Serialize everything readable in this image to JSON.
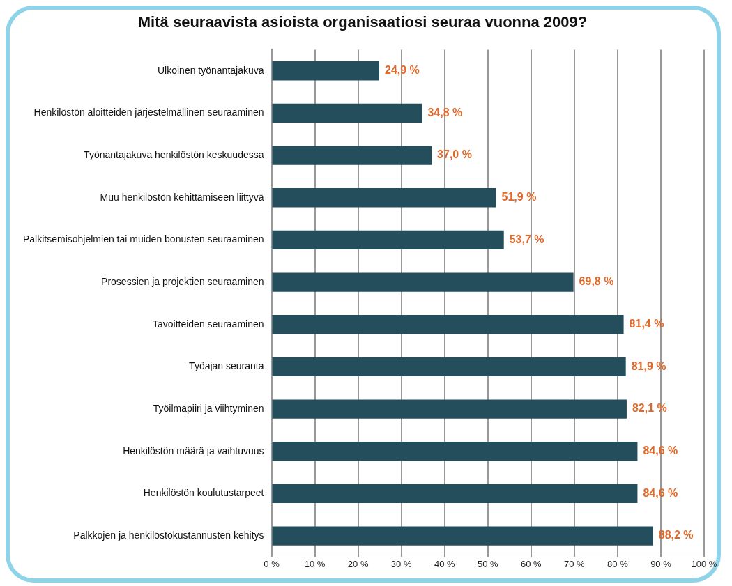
{
  "chart_data": {
    "type": "bar",
    "orientation": "horizontal",
    "title": "Mitä seuraavista asioista organisaatiosi seuraa vuonna 2009?",
    "categories": [
      "Ulkoinen työnantajakuva",
      "Henkilöstön aloitteiden järjestelmällinen seuraaminen",
      "Työnantajakuva henkilöstön keskuudessa",
      "Muu henkilöstön kehittämiseen liittyvä",
      "Palkitsemisohjelmien tai muiden bonusten seuraaminen",
      "Prosessien ja projektien seuraaminen",
      "Tavoitteiden seuraaminen",
      "Työajan seuranta",
      "Työilmapiiri ja viihtyminen",
      "Henkilöstön määrä ja vaihtuvuus",
      "Henkilöstön koulutustarpeet",
      "Palkkojen ja henkilöstökustannusten kehitys"
    ],
    "values": [
      24.9,
      34.8,
      37.0,
      51.9,
      53.7,
      69.8,
      81.4,
      81.9,
      82.1,
      84.6,
      84.6,
      88.2
    ],
    "value_labels": [
      "24,9 %",
      "34,8 %",
      "37,0 %",
      "51,9 %",
      "53,7 %",
      "69,8 %",
      "81,4 %",
      "81,9 %",
      "82,1 %",
      "84,6 %",
      "84,6 %",
      "88,2 %"
    ],
    "color": "#244e5c",
    "xlim": [
      0,
      100
    ],
    "xticks": [
      {
        "value": 0,
        "label": "0 %"
      },
      {
        "value": 10,
        "label": "10 %"
      },
      {
        "value": 20,
        "label": "20 %"
      },
      {
        "value": 30,
        "label": "30 %"
      },
      {
        "value": 40,
        "label": "40 %"
      },
      {
        "value": 50,
        "label": "50 %"
      },
      {
        "value": 60,
        "label": "60 %"
      },
      {
        "value": 70,
        "label": "70 %"
      },
      {
        "value": 80,
        "label": "80 %"
      },
      {
        "value": 90,
        "label": "90 %"
      },
      {
        "value": 100,
        "label": "100 %"
      }
    ],
    "grid": "x"
  }
}
